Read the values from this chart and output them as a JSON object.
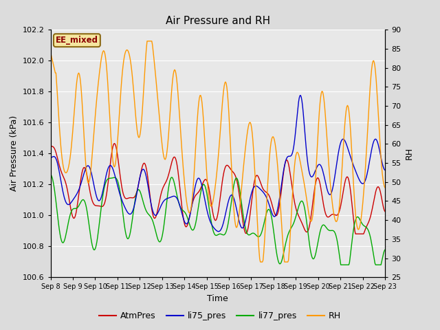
{
  "title": "Air Pressure and RH",
  "xlabel": "Time",
  "ylabel_left": "Air Pressure (kPa)",
  "ylabel_right": "RH",
  "ylim_left": [
    100.6,
    102.2
  ],
  "ylim_right": [
    25,
    90
  ],
  "yticks_left": [
    100.6,
    100.8,
    101.0,
    101.2,
    101.4,
    101.6,
    101.8,
    102.0,
    102.2
  ],
  "yticks_right": [
    25,
    30,
    35,
    40,
    45,
    50,
    55,
    60,
    65,
    70,
    75,
    80,
    85,
    90
  ],
  "station_label": "EE_mixed",
  "colors": {
    "AtmPres": "#cc0000",
    "li75_pres": "#0000cc",
    "li77_pres": "#00aa00",
    "RH": "#ff9900"
  },
  "legend_labels": [
    "AtmPres",
    "li75_pres",
    "li77_pres",
    "RH"
  ],
  "background_color": "#dcdcdc",
  "plot_bg_color": "#e8e8e8",
  "grid_color": "#ffffff"
}
